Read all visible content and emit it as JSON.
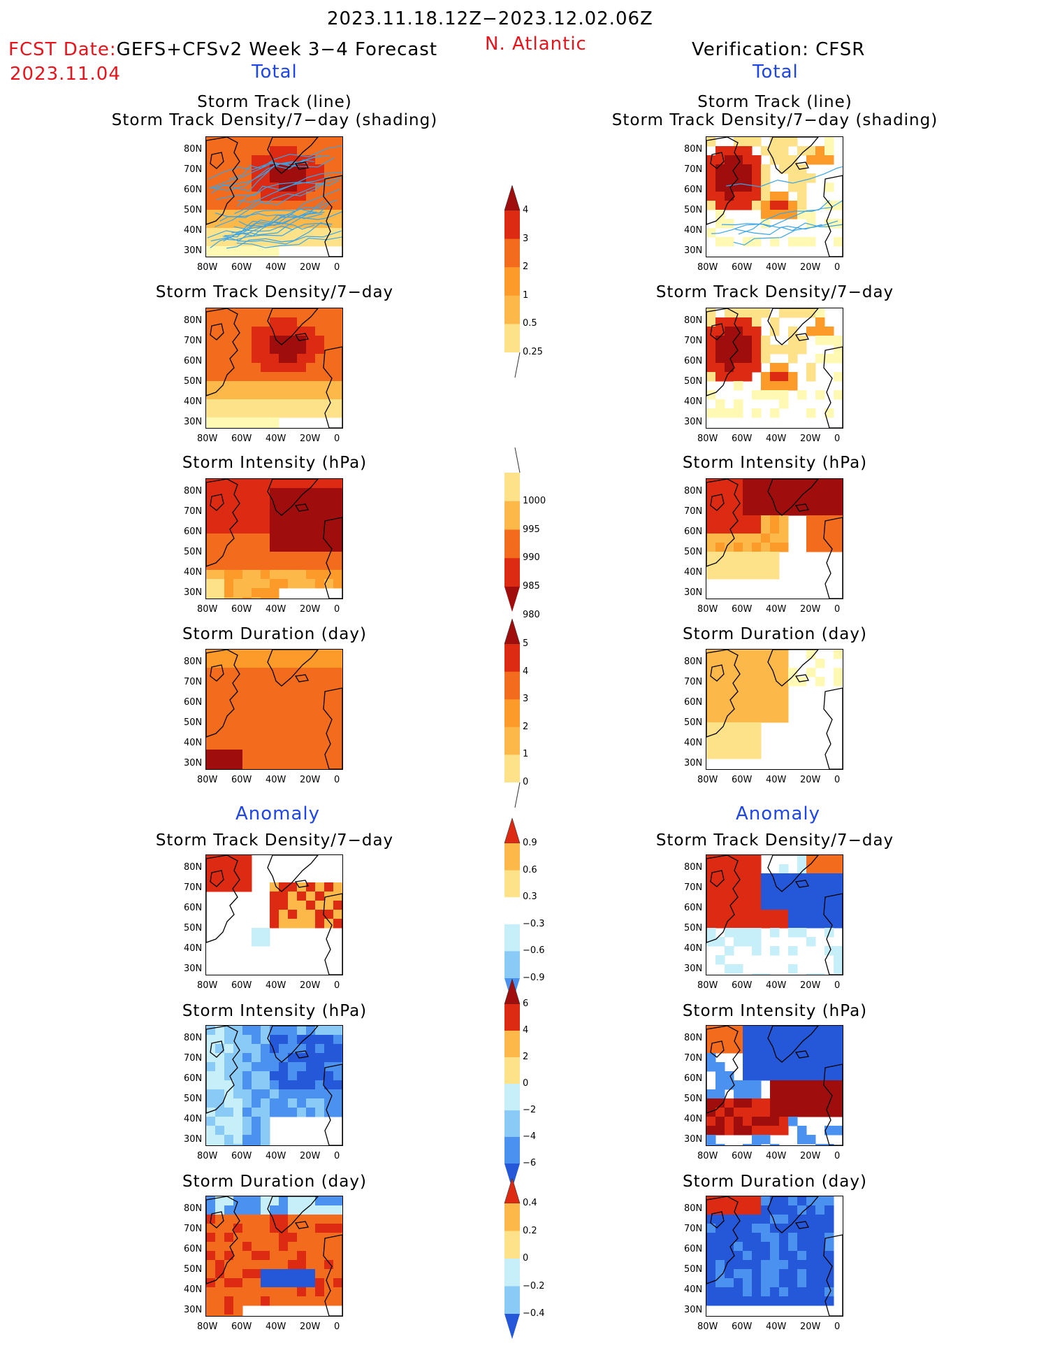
{
  "header": {
    "period": "2023.11.18.12Z−2023.12.02.06Z",
    "fcst_label": "FCST Date:",
    "fcst_model": "GEFS+CFSv2 Week 3−4 Forecast",
    "fcst_date": "2023.11.04",
    "region": "N. Atlantic",
    "verification": "Verification: CFSR",
    "left_total": "Total",
    "right_total": "Total",
    "left_anomaly": "Anomaly",
    "right_anomaly": "Anomaly"
  },
  "panel_titles": {
    "track_line": "Storm Track (line)",
    "track_shading": "Storm Track Density/7−day (shading)",
    "density": "Storm Track Density/7−day",
    "intensity": "Storm Intensity (hPa)",
    "duration": "Storm Duration (day)"
  },
  "axes": {
    "lat_ticks": [
      "80N",
      "70N",
      "60N",
      "50N",
      "40N",
      "30N"
    ],
    "lon_ticks": [
      "80W",
      "60W",
      "40W",
      "20W",
      "0"
    ]
  },
  "colorbars": {
    "density_total": [
      "4",
      "3",
      "2",
      "1",
      "0.5",
      "0.25"
    ],
    "intensity_total": [
      "1000",
      "995",
      "990",
      "985",
      "980"
    ],
    "duration_total": [
      "5",
      "4",
      "3",
      "2",
      "1",
      "0"
    ],
    "density_anom": [
      "0.9",
      "0.6",
      "0.3",
      "−0.3",
      "−0.6",
      "−0.9"
    ],
    "intensity_anom": [
      "6",
      "4",
      "2",
      "0",
      "−2",
      "−4",
      "−6"
    ],
    "duration_anom": [
      "0.4",
      "0.2",
      "0",
      "−0.2",
      "−0.4"
    ]
  },
  "colors": {
    "title_red": "#e8141c",
    "subtitle_blue": "#1e46e6",
    "warm_scale": [
      "#fff9b4",
      "#fde28a",
      "#fdb84a",
      "#fc9a2a",
      "#f36b1c",
      "#dd2a12",
      "#a00d0d"
    ],
    "cool_scale": [
      "#c6effa",
      "#89cbf6",
      "#4b92f0",
      "#2458d8"
    ],
    "track_line": "#3aa4e6"
  }
}
